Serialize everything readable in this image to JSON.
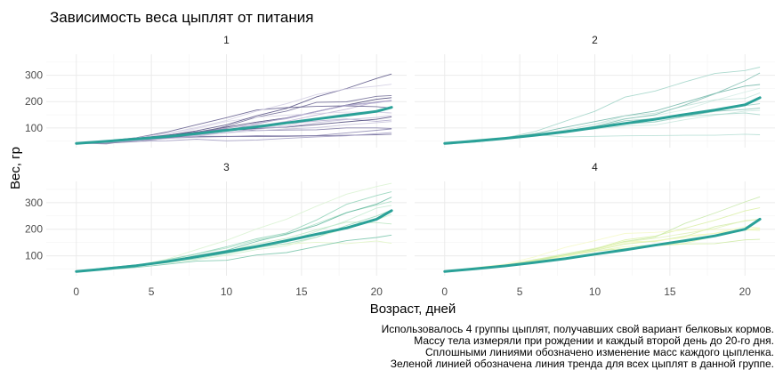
{
  "chart_data": {
    "type": "line",
    "title": "Зависимость веса цыплят от питания",
    "xlabel": "Возраст, дней",
    "ylabel": "Вес, гр",
    "xlim": [
      -2,
      22
    ],
    "ylim": [
      25,
      380
    ],
    "x_ticks": [
      0,
      5,
      10,
      15,
      20
    ],
    "x_tick_labels": [
      "0",
      "5",
      "10",
      "15",
      "20"
    ],
    "y_ticks": [
      100,
      200,
      300
    ],
    "y_tick_labels": [
      "100",
      "200",
      "300"
    ],
    "grid": true,
    "x": [
      0,
      2,
      4,
      6,
      8,
      10,
      12,
      14,
      16,
      18,
      20,
      21
    ],
    "caption": [
      "Использовалось 4 группы цыплят, получавших свой вариант белковых кормов.",
      "Массу тела измеряли при рождении и каждый второй день до 20-го дня.",
      "Сплошными линиями обозначено изменение масс каждого цыпленка.",
      "Зеленой линией обозначена линия тренда для всех цыплят в данной группе."
    ],
    "colors": {
      "trend": "#2aa198",
      "grid": "#ebebeb",
      "text": "#4d4d4d"
    },
    "panels": [
      {
        "label": "1",
        "trend": [
          41,
          49,
          58,
          67,
          78,
          91,
          104,
          119,
          134,
          148,
          163,
          178
        ],
        "chicks": [
          {
            "color": "#b8aecf",
            "values": [
              42,
              51,
              59,
              64,
              76,
              93,
              106,
              125,
              149,
              171,
              199,
              205
            ]
          },
          {
            "color": "#3f3a6e",
            "values": [
              40,
              49,
              58,
              72,
              84,
              103,
              122,
              138,
              162,
              187,
              209,
              215
            ]
          },
          {
            "color": "#9d96bd",
            "values": [
              43,
              39,
              55,
              67,
              84,
              99,
              115,
              138,
              163,
              187,
              198,
              202
            ]
          },
          {
            "color": "#c9c3db",
            "values": [
              42,
              49,
              56,
              67,
              74,
              87,
              102,
              108,
              136,
              154,
              160,
              157
            ]
          },
          {
            "color": "#6d6894",
            "values": [
              41,
              42,
              48,
              60,
              79,
              106,
              141,
              164,
              197,
              199,
              220,
              223
            ]
          },
          {
            "color": "#d8d3e6",
            "values": [
              41,
              49,
              59,
              74,
              97,
              124,
              141,
              148,
              155,
              160,
              160,
              157
            ]
          },
          {
            "color": "#524c80",
            "values": [
              41,
              49,
              57,
              71,
              89,
              112,
              146,
              174,
              218,
              250,
              288,
              305
            ]
          },
          {
            "color": "#aaa3c8",
            "values": [
              42,
              50,
              61,
              71,
              84,
              93,
              110,
              116,
              126,
              134,
              125,
              130
            ]
          },
          {
            "color": "#7a74a2",
            "values": [
              42,
              51,
              59,
              68,
              85,
              96,
              90,
              92,
              93,
              100,
              100,
              98
            ]
          },
          {
            "color": "#c4bfd9",
            "values": [
              41,
              44,
              52,
              63,
              74,
              81,
              89,
              96,
              101,
              112,
              120,
              124
            ]
          },
          {
            "color": "#5e5889",
            "values": [
              43,
              51,
              63,
              84,
              112,
              139,
              168,
              177,
              182,
              184,
              181,
              175
            ]
          },
          {
            "color": "#b3acd0",
            "values": [
              41,
              49,
              56,
              62,
              72,
              88,
              119,
              135,
              162,
              185,
              195,
              205
            ]
          },
          {
            "color": "#8c86b0",
            "values": [
              41,
              48,
              53,
              60,
              65,
              67,
              71,
              70,
              71,
              81,
              91,
              96
            ]
          },
          {
            "color": "#d0cbe2",
            "values": [
              41,
              49,
              62,
              79,
              101,
              128,
              164,
              192,
              227,
              248,
              259,
              266
            ]
          },
          {
            "color": "#6a6494",
            "values": [
              41,
              49,
              56,
              64,
              68,
              68,
              67,
              68,
              70,
              72,
              74,
              76
            ]
          },
          {
            "color": "#9f99c1",
            "values": [
              41,
              45,
              49,
              51,
              57,
              51,
              54,
              60,
              66,
              70,
              78,
              82
            ]
          },
          {
            "color": "#4a4578",
            "values": [
              42,
              51,
              61,
              72,
              83,
              89,
              98,
              103,
              113,
              123,
              133,
              142
            ]
          },
          {
            "color": "#bdb7d6",
            "values": [
              41,
              46,
              52,
              59,
              69,
              82,
              95,
              104,
              120,
              132,
              140,
              146
            ]
          }
        ]
      },
      {
        "label": "2",
        "trend": [
          41,
          50,
          60,
          72,
          85,
          101,
          117,
          133,
          151,
          168,
          188,
          215
        ],
        "chicks": [
          {
            "color": "#9fd3c7",
            "values": [
              40,
              50,
              62,
              86,
              125,
              163,
              217,
              240,
              275,
              307,
              318,
              331
            ]
          },
          {
            "color": "#c8e6dd",
            "values": [
              41,
              55,
              64,
              77,
              90,
              95,
              108,
              111,
              131,
              148,
              164,
              167
            ]
          },
          {
            "color": "#85c2b5",
            "values": [
              43,
              52,
              61,
              73,
              90,
              103,
              127,
              135,
              145,
              163,
              170,
              175
            ]
          },
          {
            "color": "#b3ddd2",
            "values": [
              42,
              52,
              58,
              74,
              66,
              68,
              70,
              71,
              72,
              72,
              76,
              74
            ]
          },
          {
            "color": "#6fb5a7",
            "values": [
              40,
              49,
              62,
              78,
              102,
              124,
              146,
              164,
              197,
              231,
              259,
              265
            ]
          },
          {
            "color": "#d4ece5",
            "values": [
              42,
              48,
              57,
              74,
              93,
              114,
              136,
              147,
              169,
              205,
              236,
              251
            ]
          },
          {
            "color": "#93cbbe",
            "values": [
              39,
              46,
              58,
              73,
              87,
              100,
              115,
              123,
              144,
              163,
              185,
              192
            ]
          },
          {
            "color": "#bfe1d8",
            "values": [
              39,
              46,
              58,
              73,
              92,
              114,
              145,
              156,
              184,
              207,
              212,
              233
            ]
          },
          {
            "color": "#7ebdb0",
            "values": [
              39,
              48,
              59,
              74,
              87,
              106,
              134,
              150,
              187,
              230,
              279,
              309
            ]
          },
          {
            "color": "#a9d8cc",
            "values": [
              42,
              48,
              59,
              72,
              85,
              98,
              115,
              122,
              143,
              151,
              157,
              150
            ]
          }
        ]
      },
      {
        "label": "3",
        "trend": [
          41,
          51,
          63,
          78,
          96,
          115,
          135,
          157,
          181,
          205,
          238,
          270
        ],
        "chicks": [
          {
            "color": "#cdeecb",
            "values": [
              42,
              53,
              62,
              73,
              85,
              102,
              123,
              138,
              170,
              204,
              235,
              256
            ]
          },
          {
            "color": "#a8dfc4",
            "values": [
              41,
              49,
              65,
              82,
              107,
              129,
              159,
              179,
              221,
              263,
              291,
              305
            ]
          },
          {
            "color": "#e1f4c4",
            "values": [
              39,
              50,
              63,
              77,
              96,
              111,
              137,
              144,
              151,
              146,
              156,
              147
            ]
          },
          {
            "color": "#8fd2b7",
            "values": [
              41,
              49,
              63,
              85,
              107,
              134,
              164,
              186,
              235,
              294,
              327,
              341
            ]
          },
          {
            "color": "#d8f2d0",
            "values": [
              41,
              53,
              64,
              87,
              123,
              158,
              201,
              238,
              287,
              332,
              361,
              373
            ]
          },
          {
            "color": "#b8e5c0",
            "values": [
              39,
              48,
              61,
              76,
              98,
              116,
              145,
              166,
              198,
              227,
              225,
              220
            ]
          },
          {
            "color": "#74c3a8",
            "values": [
              41,
              48,
              56,
              68,
              80,
              83,
              103,
              112,
              135,
              157,
              169,
              178
            ]
          },
          {
            "color": "#c3ebd1",
            "values": [
              41,
              49,
              61,
              74,
              98,
              109,
              128,
              154,
              192,
              232,
              280,
              290
            ]
          },
          {
            "color": "#9ad8bb",
            "values": [
              42,
              50,
              61,
              78,
              89,
              109,
              130,
              146,
              170,
              214,
              250,
              272
            ]
          },
          {
            "color": "#5fb59c",
            "values": [
              41,
              55,
              66,
              79,
              101,
              120,
              154,
              182,
              215,
              262,
              295,
              321
            ]
          }
        ]
      },
      {
        "label": "4",
        "trend": [
          41,
          51,
          62,
          75,
          89,
          106,
          122,
          140,
          157,
          175,
          200,
          238
        ],
        "chicks": [
          {
            "color": "#eef7b3",
            "values": [
              42,
              51,
              66,
              85,
              103,
              124,
              155,
              153,
              175,
              184,
              199,
              204
            ]
          },
          {
            "color": "#d9f0a3",
            "values": [
              42,
              49,
              63,
              84,
              103,
              126,
              160,
              174,
              204,
              234,
              269,
              281
            ]
          },
          {
            "color": "#f4f9c8",
            "values": [
              42,
              55,
              69,
              96,
              131,
              157,
              184,
              188,
              197,
              198,
              199,
              200
            ]
          },
          {
            "color": "#cbe9a0",
            "values": [
              42,
              51,
              65,
              86,
              103,
              118,
              127,
              138,
              145,
              146,
              160,
              162
            ]
          },
          {
            "color": "#e4f4b0",
            "values": [
              41,
              50,
              61,
              78,
              98,
              117,
              135,
              141,
              147,
              174,
              197,
              196
            ]
          },
          {
            "color": "#d2eca8",
            "values": [
              40,
              52,
              62,
              82,
              101,
              120,
              144,
              156,
              173,
              210,
              231,
              238
            ]
          },
          {
            "color": "#f0f8bf",
            "values": [
              41,
              53,
              66,
              79,
              100,
              123,
              148,
              157,
              168,
              185,
              210,
              205
            ]
          },
          {
            "color": "#c6e7a6",
            "values": [
              39,
              50,
              62,
              80,
              104,
              125,
              154,
              170,
              222,
              261,
              303,
              322
            ]
          },
          {
            "color": "#dff1b7",
            "values": [
              40,
              53,
              64,
              85,
              108,
              128,
              152,
              166,
              184,
              203,
              233,
              237
            ]
          }
        ]
      }
    ]
  }
}
